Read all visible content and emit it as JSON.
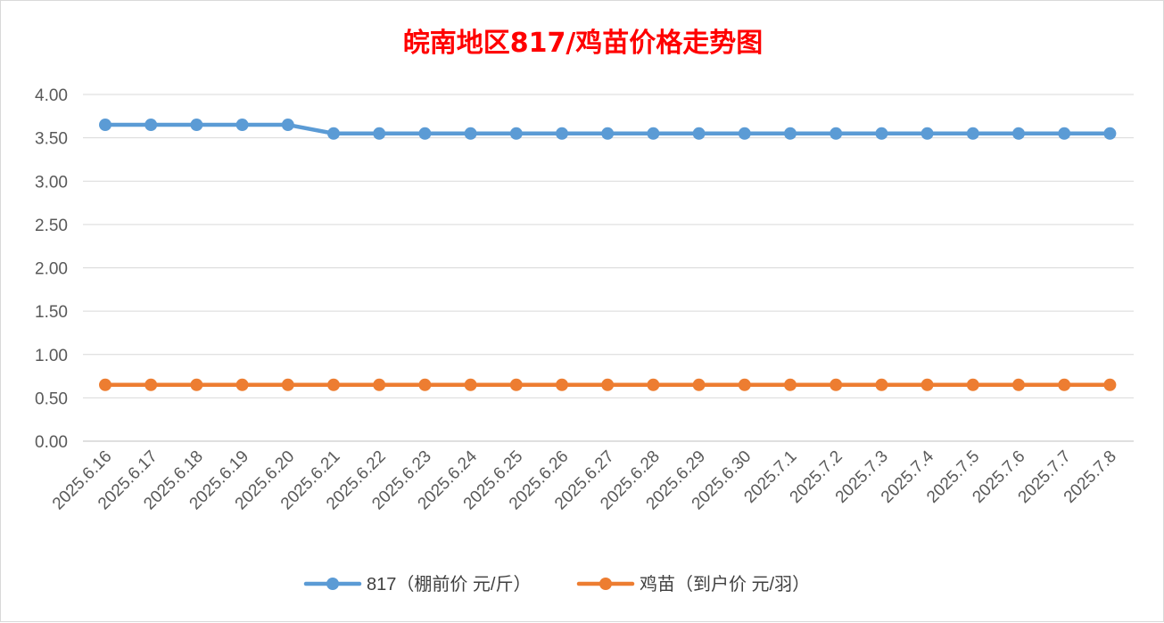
{
  "chart_data": {
    "type": "line",
    "title": "皖南地区817/鸡苗价格走势图",
    "categories": [
      "2025.6.16",
      "2025.6.17",
      "2025.6.18",
      "2025.6.19",
      "2025.6.20",
      "2025.6.21",
      "2025.6.22",
      "2025.6.23",
      "2025.6.24",
      "2025.6.25",
      "2025.6.26",
      "2025.6.27",
      "2025.6.28",
      "2025.6.29",
      "2025.6.30",
      "2025.7.1",
      "2025.7.2",
      "2025.7.3",
      "2025.7.4",
      "2025.7.5",
      "2025.7.6",
      "2025.7.7",
      "2025.7.8"
    ],
    "series": [
      {
        "name": "817（棚前价 元/斤）",
        "color": "#5b9bd5",
        "values": [
          3.65,
          3.65,
          3.65,
          3.65,
          3.65,
          3.55,
          3.55,
          3.55,
          3.55,
          3.55,
          3.55,
          3.55,
          3.55,
          3.55,
          3.55,
          3.55,
          3.55,
          3.55,
          3.55,
          3.55,
          3.55,
          3.55,
          3.55
        ]
      },
      {
        "name": "鸡苗（到户价 元/羽）",
        "color": "#ed7d31",
        "values": [
          0.65,
          0.65,
          0.65,
          0.65,
          0.65,
          0.65,
          0.65,
          0.65,
          0.65,
          0.65,
          0.65,
          0.65,
          0.65,
          0.65,
          0.65,
          0.65,
          0.65,
          0.65,
          0.65,
          0.65,
          0.65,
          0.65,
          0.65
        ]
      }
    ],
    "ylim": [
      0,
      4
    ],
    "yticks": [
      "0.00",
      "0.50",
      "1.00",
      "1.50",
      "2.00",
      "2.50",
      "3.00",
      "3.50",
      "4.00"
    ],
    "ytick_step": 0.5,
    "grid": true,
    "legend": "bottom",
    "title_color": "#ff0000"
  }
}
